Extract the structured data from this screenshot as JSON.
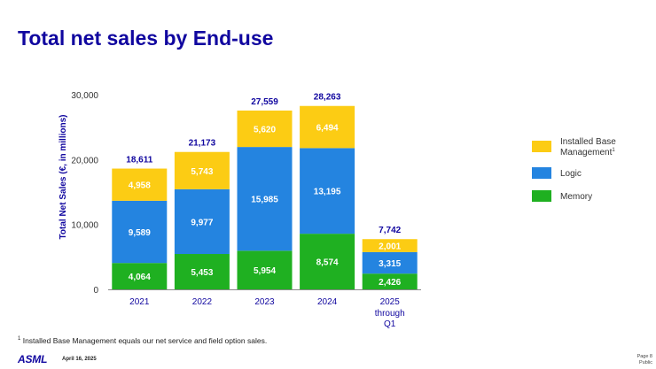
{
  "page_title": "Total net sales by End-use",
  "chart_data": {
    "type": "bar",
    "stacked": true,
    "categories": [
      "2021",
      "2022",
      "2023",
      "2024",
      "2025"
    ],
    "category_sublabels": [
      "",
      "",
      "",
      "",
      "through Q1"
    ],
    "series": [
      {
        "name": "Memory",
        "color": "#1fb021",
        "values": [
          4064,
          5453,
          5954,
          8574,
          2426
        ],
        "labels": [
          "4,064",
          "5,453",
          "5,954",
          "8,574",
          "2,426"
        ]
      },
      {
        "name": "Logic",
        "color": "#2484e0",
        "values": [
          9589,
          9977,
          15985,
          13195,
          3315
        ],
        "labels": [
          "9,589",
          "9,977",
          "15,985",
          "13,195",
          "3,315"
        ]
      },
      {
        "name": "Installed Base Management",
        "color": "#fccc14",
        "values": [
          4958,
          5743,
          5620,
          6494,
          2001
        ],
        "labels": [
          "4,958",
          "5,743",
          "5,620",
          "6,494",
          "2,001"
        ]
      }
    ],
    "totals": [
      18611,
      21173,
      27559,
      28263,
      7742
    ],
    "total_labels": [
      "18,611",
      "21,173",
      "27,559",
      "28,263",
      "7,742"
    ],
    "ylabel": "Total Net Sales (€, in millions)",
    "ylim": [
      0,
      30000
    ],
    "yticks": [
      0,
      10000,
      20000,
      30000
    ],
    "ytick_labels": [
      "0",
      "10,000",
      "20,000",
      "30,000"
    ],
    "legend": [
      {
        "label": "Installed Base Management",
        "sup": "1",
        "color": "#fccc14"
      },
      {
        "label": "Logic",
        "sup": "",
        "color": "#2484e0"
      },
      {
        "label": "Memory",
        "sup": "",
        "color": "#1fb021"
      }
    ],
    "legend_position": "right"
  },
  "footnote": {
    "marker": "1",
    "text": "Installed Base Management equals our net service and field option sales."
  },
  "footer": {
    "logo": "ASML",
    "date": "April 16, 2025",
    "page": "Page 8",
    "classification": "Public"
  }
}
